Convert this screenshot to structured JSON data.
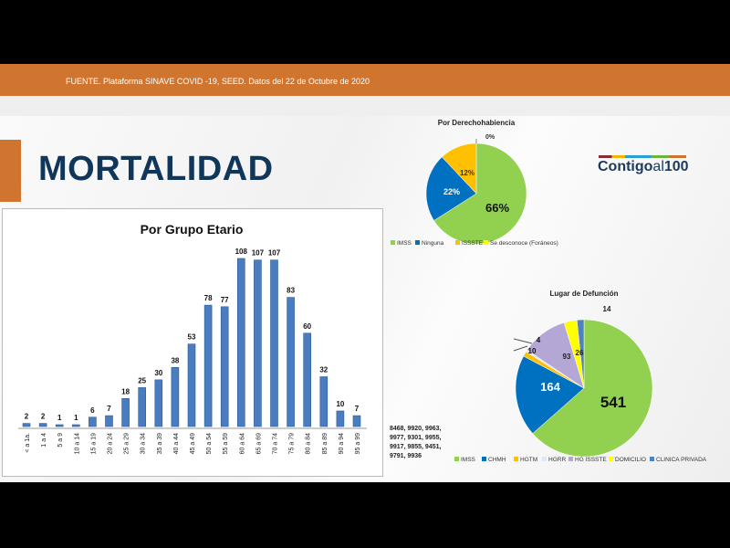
{
  "header": {
    "source": "FUENTE. Plataforma SINAVE COVID -19, SEED. Datos del 22 de Octubre de 2020"
  },
  "title": "MORTALIDAD",
  "logo": {
    "main": "Contigo",
    "al": "al",
    "num": "100"
  },
  "note": "8468, 9920, 9963, 9977, 9301, 9955, 9917, 9855, 9451, 9791, 9936",
  "chart_data": [
    {
      "type": "bar",
      "title": "Por Grupo Etario",
      "categories": [
        "< a 1a.",
        "1 a 4",
        "5 a 9",
        "10 a 14",
        "15 a 19",
        "20 a 24",
        "25 a 29",
        "30 a 34",
        "35 a 39",
        "40 a 44",
        "45 a 49",
        "50 a 54",
        "55 a 59",
        "60 a 64",
        "65 a 69",
        "70 a 74",
        "75 a 79",
        "80 a 84",
        "85 a 89",
        "90 a 94",
        "95 a 99"
      ],
      "values": [
        2,
        2,
        1,
        1,
        6,
        7,
        18,
        25,
        30,
        38,
        53,
        78,
        77,
        108,
        107,
        107,
        83,
        60,
        32,
        10,
        7
      ],
      "color": "#4a7cc0",
      "grid": false
    },
    {
      "type": "pie",
      "title": "Por Derechohabiencia",
      "labels": [
        "IMSS",
        "Ninguna",
        "ISSSTE",
        "Se desconoce (Foráneos)"
      ],
      "values": [
        66,
        22,
        12,
        0
      ],
      "value_labels": [
        "66%",
        "22%",
        "12%",
        "0%"
      ],
      "colors": [
        "#92d050",
        "#0070c0",
        "#ffc000",
        "#ffff00"
      ],
      "legend": "bottom"
    },
    {
      "type": "pie",
      "title": "Lugar de Defunción",
      "labels": [
        "IMSS",
        "CHMH",
        "HGTM",
        "HGRR",
        "HG ISSSTE",
        "DOMICILIO",
        "CLINICA PRIVADA"
      ],
      "values": [
        541,
        164,
        10,
        4,
        93,
        26,
        14
      ],
      "colors": [
        "#92d050",
        "#0070c0",
        "#ffc000",
        "#dde8f5",
        "#b4a7d6",
        "#ffff00",
        "#4f81bd"
      ],
      "legend": "bottom"
    }
  ]
}
